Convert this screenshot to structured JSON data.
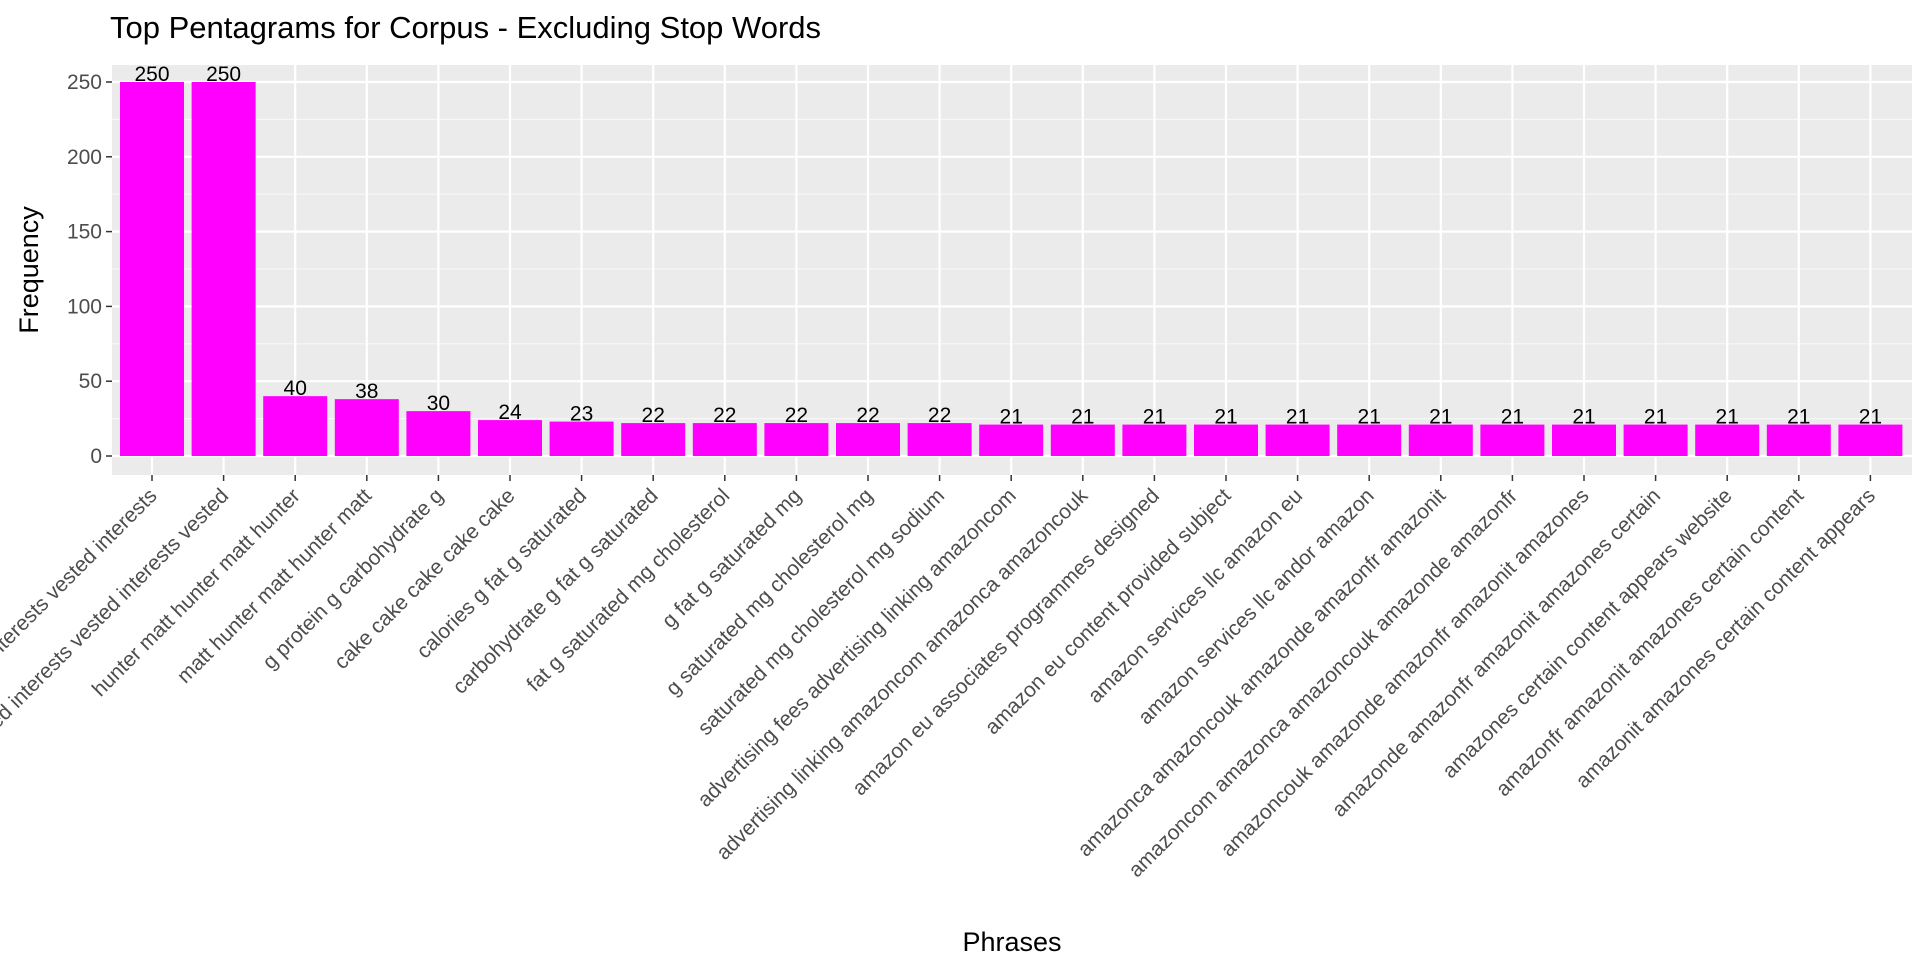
{
  "chart_data": {
    "type": "bar",
    "title": "Top Pentagrams for Corpus - Excluding Stop Words",
    "xlabel": "Phrases",
    "ylabel": "Frequency",
    "ylim": [
      0,
      262
    ],
    "yticks": [
      0,
      50,
      100,
      150,
      200,
      250
    ],
    "grid": true,
    "bar_color": "#ff00ff",
    "panel_color": "#ebebeb",
    "categories": [
      "interests vested interests vested interests",
      "vested interests vested interests vested",
      "hunter matt hunter matt hunter",
      "matt hunter matt hunter matt",
      "g protein g carbohydrate g",
      "cake cake cake cake cake",
      "calories g fat g saturated",
      "carbohydrate g fat g saturated",
      "fat g saturated mg cholesterol",
      "g fat g saturated mg",
      "g saturated mg cholesterol mg",
      "saturated mg cholesterol mg sodium",
      "advertising fees advertising linking amazoncom",
      "advertising linking amazoncom amazonca amazoncouk",
      "amazon eu associates programmes designed",
      "amazon eu content provided subject",
      "amazon services llc amazon eu",
      "amazon services llc andor amazon",
      "amazonca amazoncouk amazonde amazonfr amazonit",
      "amazoncom amazonca amazoncouk amazonde amazonfr",
      "amazoncouk amazonde amazonfr amazonit amazones",
      "amazonde amazonfr amazonit amazones certain",
      "amazones certain content appears website",
      "amazonfr amazonit amazones certain content",
      "amazonit amazones certain content appears"
    ],
    "values": [
      250,
      250,
      40,
      38,
      30,
      24,
      23,
      22,
      22,
      22,
      22,
      22,
      21,
      21,
      21,
      21,
      21,
      21,
      21,
      21,
      21,
      21,
      21,
      21,
      21
    ]
  }
}
